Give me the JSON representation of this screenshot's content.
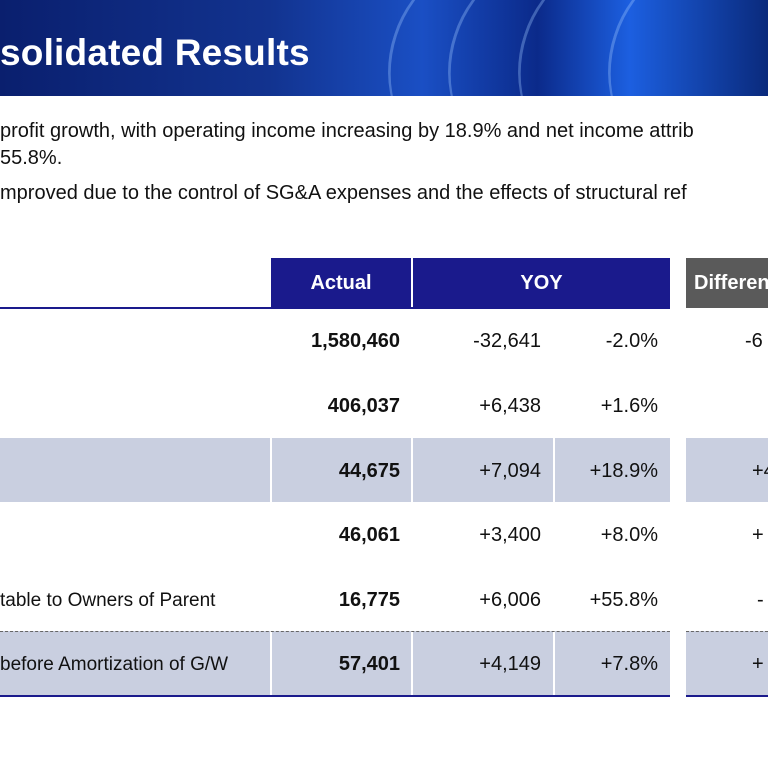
{
  "header": {
    "title": "solidated Results"
  },
  "intro": {
    "line1": "profit growth, with operating income increasing by 18.9% and net income attrib",
    "line2": "55.8%.",
    "line3": "mproved due to the control of SG&A expenses and the effects of structural ref"
  },
  "table": {
    "headers": {
      "actual": "Actual",
      "yoy": "YOY",
      "difference": "Differen"
    },
    "rows": [
      {
        "label": "",
        "actual": "1,580,460",
        "yoy_amount": "-32,641",
        "yoy_pct": "-2.0%",
        "diff": "-6",
        "shaded": false
      },
      {
        "label": "",
        "actual": "406,037",
        "yoy_amount": "+6,438",
        "yoy_pct": "+1.6%",
        "diff": "",
        "shaded": false
      },
      {
        "label": "",
        "actual": "44,675",
        "yoy_amount": "+7,094",
        "yoy_pct": "+18.9%",
        "diff": "+4",
        "shaded": true
      },
      {
        "label": "",
        "actual": "46,061",
        "yoy_amount": "+3,400",
        "yoy_pct": "+8.0%",
        "diff": "+",
        "shaded": false
      },
      {
        "label": "table to Owners of Parent",
        "actual": "16,775",
        "yoy_amount": "+6,006",
        "yoy_pct": "+55.8%",
        "diff": "-",
        "shaded": false
      },
      {
        "label": "before Amortization of G/W",
        "actual": "57,401",
        "yoy_amount": "+4,149",
        "yoy_pct": "+7.8%",
        "diff": "+",
        "shaded": true
      }
    ]
  },
  "colors": {
    "header_blue": "#1a1a8c",
    "header_gray": "#5a5a5a",
    "row_shade": "#c9cfe0"
  }
}
